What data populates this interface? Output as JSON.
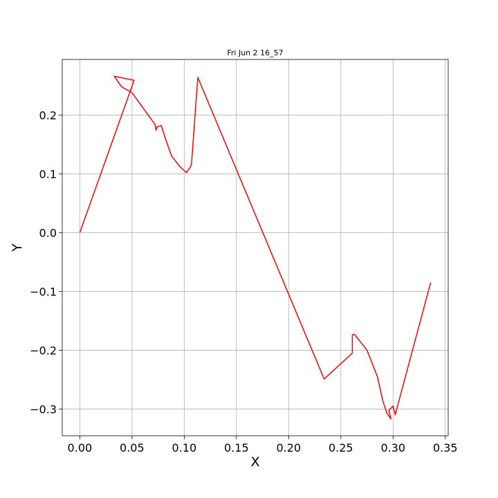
{
  "chart_data": {
    "type": "line",
    "title": "Fri Jun  2 16_57",
    "xlabel": "X",
    "ylabel": "Y",
    "xlim": [
      -0.0168,
      0.3528
    ],
    "ylim": [
      -0.3455,
      0.2945
    ],
    "xticks": [
      0.0,
      0.05,
      0.1,
      0.15,
      0.2,
      0.25,
      0.3,
      0.35
    ],
    "xtick_labels": [
      "0.00",
      "0.05",
      "0.10",
      "0.15",
      "0.20",
      "0.25",
      "0.30",
      "0.35"
    ],
    "yticks": [
      -0.3,
      -0.2,
      -0.1,
      0.0,
      0.1,
      0.2
    ],
    "ytick_labels": [
      "−0.3",
      "−0.2",
      "−0.1",
      "0.0",
      "0.1",
      "0.2"
    ],
    "grid": true,
    "series": [
      {
        "color": "#ff0000",
        "x": [
          0.0,
          0.052,
          0.033,
          0.04,
          0.05,
          0.072,
          0.073,
          0.074,
          0.078,
          0.082,
          0.088,
          0.096,
          0.102,
          0.106,
          0.107,
          0.113,
          0.234,
          0.261,
          0.261,
          0.263,
          0.275,
          0.285,
          0.29,
          0.294,
          0.298,
          0.296,
          0.3,
          0.302,
          0.336
        ],
        "y": [
          0.0,
          0.259,
          0.266,
          0.248,
          0.238,
          0.184,
          0.174,
          0.18,
          0.182,
          0.16,
          0.13,
          0.112,
          0.102,
          0.112,
          0.117,
          0.264,
          -0.249,
          -0.205,
          -0.174,
          -0.173,
          -0.2,
          -0.245,
          -0.285,
          -0.307,
          -0.317,
          -0.302,
          -0.295,
          -0.31,
          -0.085
        ]
      }
    ]
  }
}
